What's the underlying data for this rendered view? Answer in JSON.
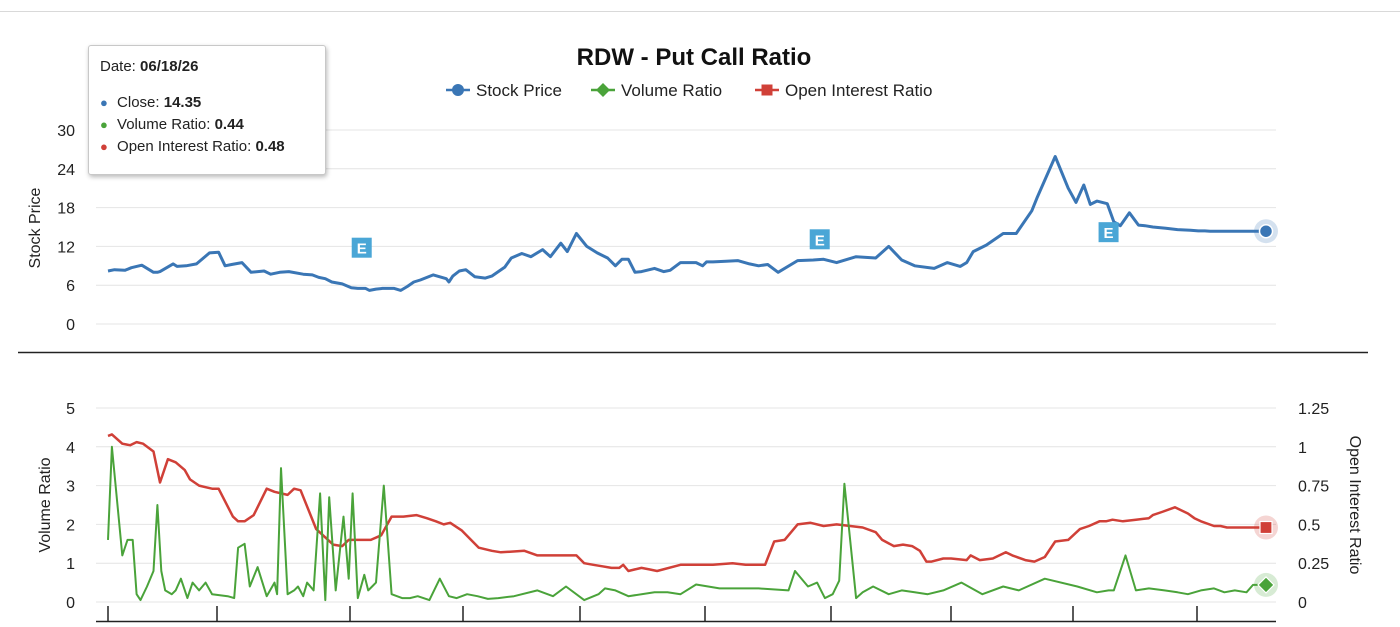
{
  "tooltip": {
    "date_label": "Date:",
    "date_value": "06/18/26",
    "rows": [
      {
        "label": "Close:",
        "value": "14.35",
        "color": "#3a76b5"
      },
      {
        "label": "Volume Ratio:",
        "value": "0.44",
        "color": "#4aa33a"
      },
      {
        "label": "Open Interest Ratio:",
        "value": "0.48",
        "color": "#d04038"
      }
    ]
  },
  "chart_data": {
    "type": "line",
    "title": "RDW - Put Call Ratio",
    "legend": {
      "placement": "top-center",
      "items": [
        {
          "name": "Stock Price",
          "marker": "circle",
          "color": "#3a76b5"
        },
        {
          "name": "Volume Ratio",
          "marker": "diamond",
          "color": "#4aa33a"
        },
        {
          "name": "Open Interest Ratio",
          "marker": "square",
          "color": "#d04038"
        }
      ]
    },
    "grid": true,
    "colors": {
      "stock": "#3a76b5",
      "volume": "#4aa33a",
      "oi": "#d04038",
      "earnings": "#4aa6d6"
    },
    "x_end_date": "06/18/26",
    "top_panel": {
      "ylabel": "Stock Price",
      "ylim": [
        0,
        30
      ],
      "yticks": [
        "0",
        "6",
        "12",
        "18",
        "24",
        "30"
      ],
      "earnings_marker_label": "E",
      "earnings_markers": [
        {
          "x": 195,
          "y": 11.8
        },
        {
          "x": 547,
          "y": 13.1
        },
        {
          "x": 769,
          "y": 14.2
        }
      ],
      "series": [
        {
          "name": "Stock Price",
          "x": [
            0,
            5,
            13,
            18,
            26,
            35,
            38,
            40,
            50,
            53,
            60,
            68,
            78,
            85,
            90,
            95,
            103,
            110,
            120,
            125,
            132,
            139,
            150,
            157,
            162,
            167,
            172,
            180,
            187,
            192,
            198,
            201,
            206,
            211,
            220,
            225,
            230,
            235,
            240,
            250,
            260,
            262,
            265,
            270,
            275,
            282,
            290,
            295,
            305,
            310,
            318,
            325,
            334,
            340,
            348,
            353,
            360,
            368,
            376,
            384,
            390,
            395,
            400,
            405,
            410,
            420,
            427,
            432,
            440,
            452,
            457,
            460,
            465,
            475,
            484,
            493,
            500,
            507,
            515,
            530,
            542,
            550,
            560,
            575,
            590,
            600,
            610,
            620,
            635,
            645,
            655,
            660,
            665,
            675,
            688,
            698,
            710,
            714,
            728,
            738,
            744,
            750,
            755,
            760,
            768,
            773,
            778,
            785,
            792,
            797,
            803,
            813,
            822,
            832,
            838,
            843,
            847,
            853,
            857,
            861,
            866,
            873,
            880,
            885,
            890
          ],
          "values": [
            8.2,
            8.4,
            8.3,
            8.7,
            9.1,
            8.0,
            8.0,
            8.1,
            9.3,
            8.9,
            9.0,
            9.3,
            11.0,
            11.1,
            9.0,
            9.2,
            9.5,
            8.0,
            8.2,
            7.7,
            8.0,
            8.1,
            7.7,
            7.6,
            7.2,
            7.0,
            6.5,
            6.2,
            5.6,
            5.5,
            5.5,
            5.2,
            5.4,
            5.5,
            5.5,
            5.2,
            5.8,
            6.5,
            6.8,
            7.6,
            7.0,
            6.5,
            7.4,
            8.2,
            8.4,
            7.3,
            7.1,
            7.4,
            8.8,
            10.2,
            10.9,
            10.4,
            11.5,
            10.4,
            12.5,
            11.2,
            14.0,
            12.0,
            11.0,
            10.2,
            9.0,
            10.0,
            10.0,
            8.0,
            8.1,
            8.6,
            8.1,
            8.3,
            9.5,
            9.5,
            9.0,
            9.6,
            9.6,
            9.7,
            9.8,
            9.3,
            9.0,
            9.2,
            8.0,
            9.8,
            9.9,
            10.0,
            9.5,
            10.4,
            10.2,
            12.0,
            9.9,
            9.0,
            8.6,
            9.5,
            8.9,
            9.5,
            11.2,
            12.2,
            14.0,
            14.0,
            17.5,
            19.5,
            25.9,
            21.0,
            18.8,
            21.5,
            18.5,
            19.0,
            18.6,
            15.8,
            15.2,
            17.2,
            15.3,
            15.2,
            15.0,
            14.8,
            14.6,
            14.5,
            14.4,
            14.4,
            14.35,
            14.35,
            14.35,
            14.35,
            14.35,
            14.35,
            14.35,
            14.35,
            14.35
          ]
        }
      ]
    },
    "bottom_panel": {
      "ylabel_left": "Volume Ratio",
      "ylim_left": [
        0,
        5
      ],
      "yticks_left": [
        "0",
        "1",
        "2",
        "3",
        "4",
        "5"
      ],
      "ylabel_right": "Open Interest Ratio",
      "ylim_right": [
        0,
        1.25
      ],
      "yticks_right": [
        "0",
        "0.25",
        "0.5",
        "0.75",
        "1",
        "1.25"
      ],
      "series": [
        {
          "name": "Open Interest Ratio",
          "axis": "right",
          "x": [
            0,
            3,
            11,
            17,
            22,
            27,
            35,
            40,
            46,
            52,
            59,
            63,
            70,
            75,
            80,
            85,
            96,
            100,
            105,
            112,
            122,
            128,
            138,
            143,
            148,
            160,
            173,
            180,
            185,
            200,
            202,
            210,
            218,
            227,
            237,
            245,
            252,
            258,
            263,
            272,
            285,
            295,
            302,
            320,
            330,
            337,
            350,
            360,
            366,
            373,
            380,
            387,
            393,
            396,
            400,
            405,
            410,
            416,
            422,
            440,
            455,
            465,
            480,
            490,
            505,
            512,
            520,
            530,
            540,
            550,
            560,
            580,
            590,
            595,
            604,
            611,
            618,
            624,
            629,
            633,
            642,
            648,
            660,
            663,
            670,
            680,
            690,
            695,
            705,
            712,
            720,
            728,
            738,
            747,
            754,
            762,
            767,
            772,
            780,
            790,
            800,
            803,
            810,
            820,
            830,
            835,
            840,
            850,
            855,
            860,
            865,
            870,
            880,
            890
          ],
          "values": [
            1.07,
            1.08,
            1.02,
            1.01,
            1.03,
            1.02,
            0.97,
            0.77,
            0.92,
            0.9,
            0.85,
            0.79,
            0.75,
            0.74,
            0.73,
            0.73,
            0.55,
            0.52,
            0.52,
            0.56,
            0.73,
            0.71,
            0.69,
            0.73,
            0.72,
            0.47,
            0.37,
            0.36,
            0.4,
            0.4,
            0.4,
            0.43,
            0.55,
            0.55,
            0.56,
            0.54,
            0.52,
            0.5,
            0.51,
            0.46,
            0.35,
            0.33,
            0.32,
            0.33,
            0.3,
            0.3,
            0.3,
            0.3,
            0.25,
            0.24,
            0.23,
            0.22,
            0.22,
            0.24,
            0.2,
            0.21,
            0.22,
            0.21,
            0.2,
            0.24,
            0.24,
            0.24,
            0.25,
            0.24,
            0.24,
            0.39,
            0.4,
            0.5,
            0.51,
            0.49,
            0.5,
            0.48,
            0.45,
            0.4,
            0.36,
            0.37,
            0.36,
            0.33,
            0.26,
            0.26,
            0.28,
            0.28,
            0.27,
            0.3,
            0.27,
            0.28,
            0.32,
            0.3,
            0.27,
            0.26,
            0.29,
            0.39,
            0.4,
            0.47,
            0.49,
            0.52,
            0.52,
            0.53,
            0.52,
            0.53,
            0.54,
            0.56,
            0.58,
            0.61,
            0.57,
            0.54,
            0.52,
            0.49,
            0.49,
            0.48,
            0.48,
            0.48,
            0.48,
            0.48
          ]
        },
        {
          "name": "Volume Ratio",
          "axis": "left",
          "x": [
            0,
            3,
            11,
            15,
            19,
            22,
            25,
            30,
            35,
            38,
            41,
            44,
            49,
            52,
            56,
            61,
            65,
            70,
            75,
            80,
            92,
            97,
            100,
            105,
            109,
            115,
            122,
            128,
            130,
            133,
            138,
            143,
            146,
            150,
            153,
            158,
            163,
            167,
            170,
            175,
            181,
            185,
            188,
            192,
            197,
            200,
            203,
            206,
            212,
            218,
            226,
            232,
            238,
            247,
            255,
            262,
            268,
            276,
            284,
            292,
            300,
            312,
            330,
            342,
            352,
            366,
            377,
            382,
            390,
            400,
            420,
            430,
            440,
            452,
            470,
            500,
            523,
            528,
            538,
            545,
            548,
            551,
            557,
            562,
            566,
            575,
            580,
            588,
            600,
            610,
            620,
            630,
            642,
            656,
            672,
            688,
            700,
            720,
            745,
            760,
            769,
            773,
            782,
            790,
            800,
            812,
            822,
            830,
            840,
            850,
            858,
            866,
            875,
            880,
            885,
            890
          ],
          "values": [
            1.6,
            4.0,
            1.2,
            1.6,
            1.6,
            0.2,
            0.05,
            0.4,
            0.8,
            2.5,
            0.8,
            0.3,
            0.2,
            0.3,
            0.6,
            0.1,
            0.5,
            0.3,
            0.5,
            0.2,
            0.15,
            0.1,
            1.4,
            1.5,
            0.4,
            0.9,
            0.15,
            0.5,
            0.2,
            3.45,
            0.2,
            0.3,
            0.4,
            0.15,
            0.5,
            0.3,
            2.8,
            0.05,
            2.7,
            0.3,
            2.2,
            0.6,
            2.8,
            0.1,
            0.7,
            0.3,
            0.4,
            0.5,
            3.0,
            0.2,
            0.1,
            0.1,
            0.15,
            0.05,
            0.6,
            0.15,
            0.1,
            0.2,
            0.15,
            0.08,
            0.1,
            0.15,
            0.3,
            0.15,
            0.4,
            0.05,
            0.2,
            0.35,
            0.3,
            0.15,
            0.25,
            0.25,
            0.2,
            0.45,
            0.35,
            0.35,
            0.3,
            0.8,
            0.4,
            0.5,
            0.3,
            0.1,
            0.2,
            0.55,
            3.05,
            0.1,
            0.25,
            0.4,
            0.2,
            0.3,
            0.25,
            0.2,
            0.3,
            0.5,
            0.2,
            0.4,
            0.3,
            0.6,
            0.4,
            0.25,
            0.3,
            0.3,
            1.2,
            0.3,
            0.35,
            0.3,
            0.25,
            0.2,
            0.3,
            0.35,
            0.25,
            0.3,
            0.25,
            0.44,
            0.44,
            0.44
          ]
        }
      ]
    }
  }
}
